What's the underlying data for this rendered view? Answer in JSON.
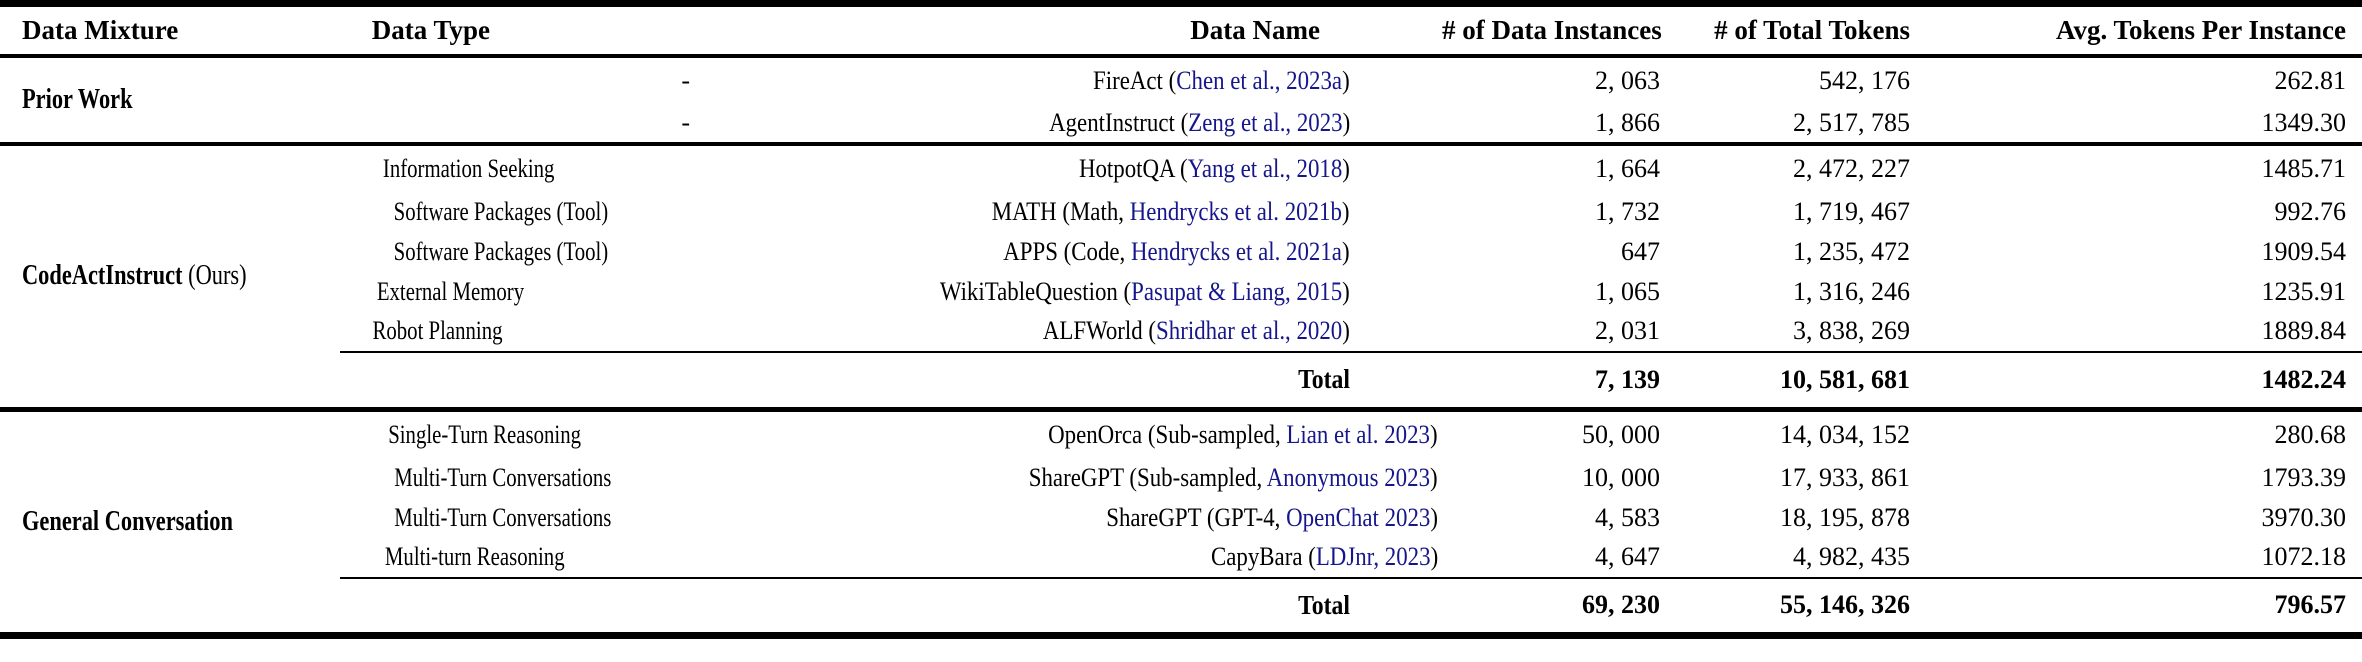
{
  "colors": {
    "citation": "#16168c",
    "text": "#000000",
    "rule": "#000000"
  },
  "table": {
    "columns": [
      {
        "label": "Data Mixture"
      },
      {
        "label": "Data Type"
      },
      {
        "label": "Data Name"
      },
      {
        "label": "# of Data Instances"
      },
      {
        "label": "# of Total Tokens"
      },
      {
        "label": "Avg. Tokens Per Instance"
      }
    ],
    "sections": [
      {
        "mixture": {
          "bold": "Prior Work",
          "regular": ""
        },
        "rows": [
          {
            "type": "-",
            "name_prefix": "FireAct (",
            "citation": "Chen et al., 2023a",
            "name_suffix": ")",
            "instances": "2, 063",
            "tokens": "542, 176",
            "avg": "262.81"
          },
          {
            "type": "-",
            "name_prefix": "AgentInstruct (",
            "citation": "Zeng et al., 2023",
            "name_suffix": ")",
            "instances": "1, 866",
            "tokens": "2, 517, 785",
            "avg": "1349.30"
          }
        ]
      },
      {
        "mixture": {
          "bold": "CodeActInstruct",
          "regular": " (Ours)"
        },
        "rows": [
          {
            "type": "Information Seeking",
            "name_prefix": "HotpotQA (",
            "citation": "Yang et al., 2018",
            "name_suffix": ")",
            "instances": "1, 664",
            "tokens": "2, 472, 227",
            "avg": "1485.71"
          },
          {
            "type": "Software Packages (Tool)",
            "name_prefix": "MATH (Math, ",
            "citation": "Hendrycks et al. 2021b",
            "name_suffix": ")",
            "instances": "1, 732",
            "tokens": "1, 719, 467",
            "avg": "992.76"
          },
          {
            "type": "Software Packages (Tool)",
            "name_prefix": "APPS (Code, ",
            "citation": "Hendrycks et al. 2021a",
            "name_suffix": ")",
            "instances": "647",
            "tokens": "1, 235, 472",
            "avg": "1909.54"
          },
          {
            "type": "External Memory",
            "name_prefix": "WikiTableQuestion (",
            "citation": "Pasupat & Liang, 2015",
            "name_suffix": ")",
            "instances": "1, 065",
            "tokens": "1, 316, 246",
            "avg": "1235.91"
          },
          {
            "type": "Robot Planning",
            "name_prefix": "ALFWorld (",
            "citation": "Shridhar et al., 2020",
            "name_suffix": ")",
            "instances": "2, 031",
            "tokens": "3, 838, 269",
            "avg": "1889.84"
          }
        ],
        "total": {
          "label": "Total",
          "instances": "7, 139",
          "tokens": "10, 581, 681",
          "avg": "1482.24"
        }
      },
      {
        "mixture": {
          "bold": "General Conversation",
          "regular": ""
        },
        "rows": [
          {
            "type": "Single-Turn Reasoning",
            "name_prefix": "OpenOrca (Sub-sampled, ",
            "citation": "Lian et al. 2023",
            "name_suffix": ")",
            "instances": "50, 000",
            "tokens": "14, 034, 152",
            "avg": "280.68"
          },
          {
            "type": "Multi-Turn Conversations",
            "name_prefix": "ShareGPT (Sub-sampled, ",
            "citation": "Anonymous 2023",
            "name_suffix": ")",
            "instances": "10, 000",
            "tokens": "17, 933, 861",
            "avg": "1793.39"
          },
          {
            "type": "Multi-Turn Conversations",
            "name_prefix": "ShareGPT (GPT-4, ",
            "citation": "OpenChat 2023",
            "name_suffix": ")",
            "instances": "4, 583",
            "tokens": "18, 195, 878",
            "avg": "3970.30"
          },
          {
            "type": "Multi-turn Reasoning",
            "name_prefix": "CapyBara (",
            "citation": "LDJnr, 2023",
            "name_suffix": ")",
            "instances": "4, 647",
            "tokens": "4, 982, 435",
            "avg": "1072.18"
          }
        ],
        "total": {
          "label": "Total",
          "instances": "69, 230",
          "tokens": "55, 146, 326",
          "avg": "796.57"
        }
      }
    ]
  }
}
